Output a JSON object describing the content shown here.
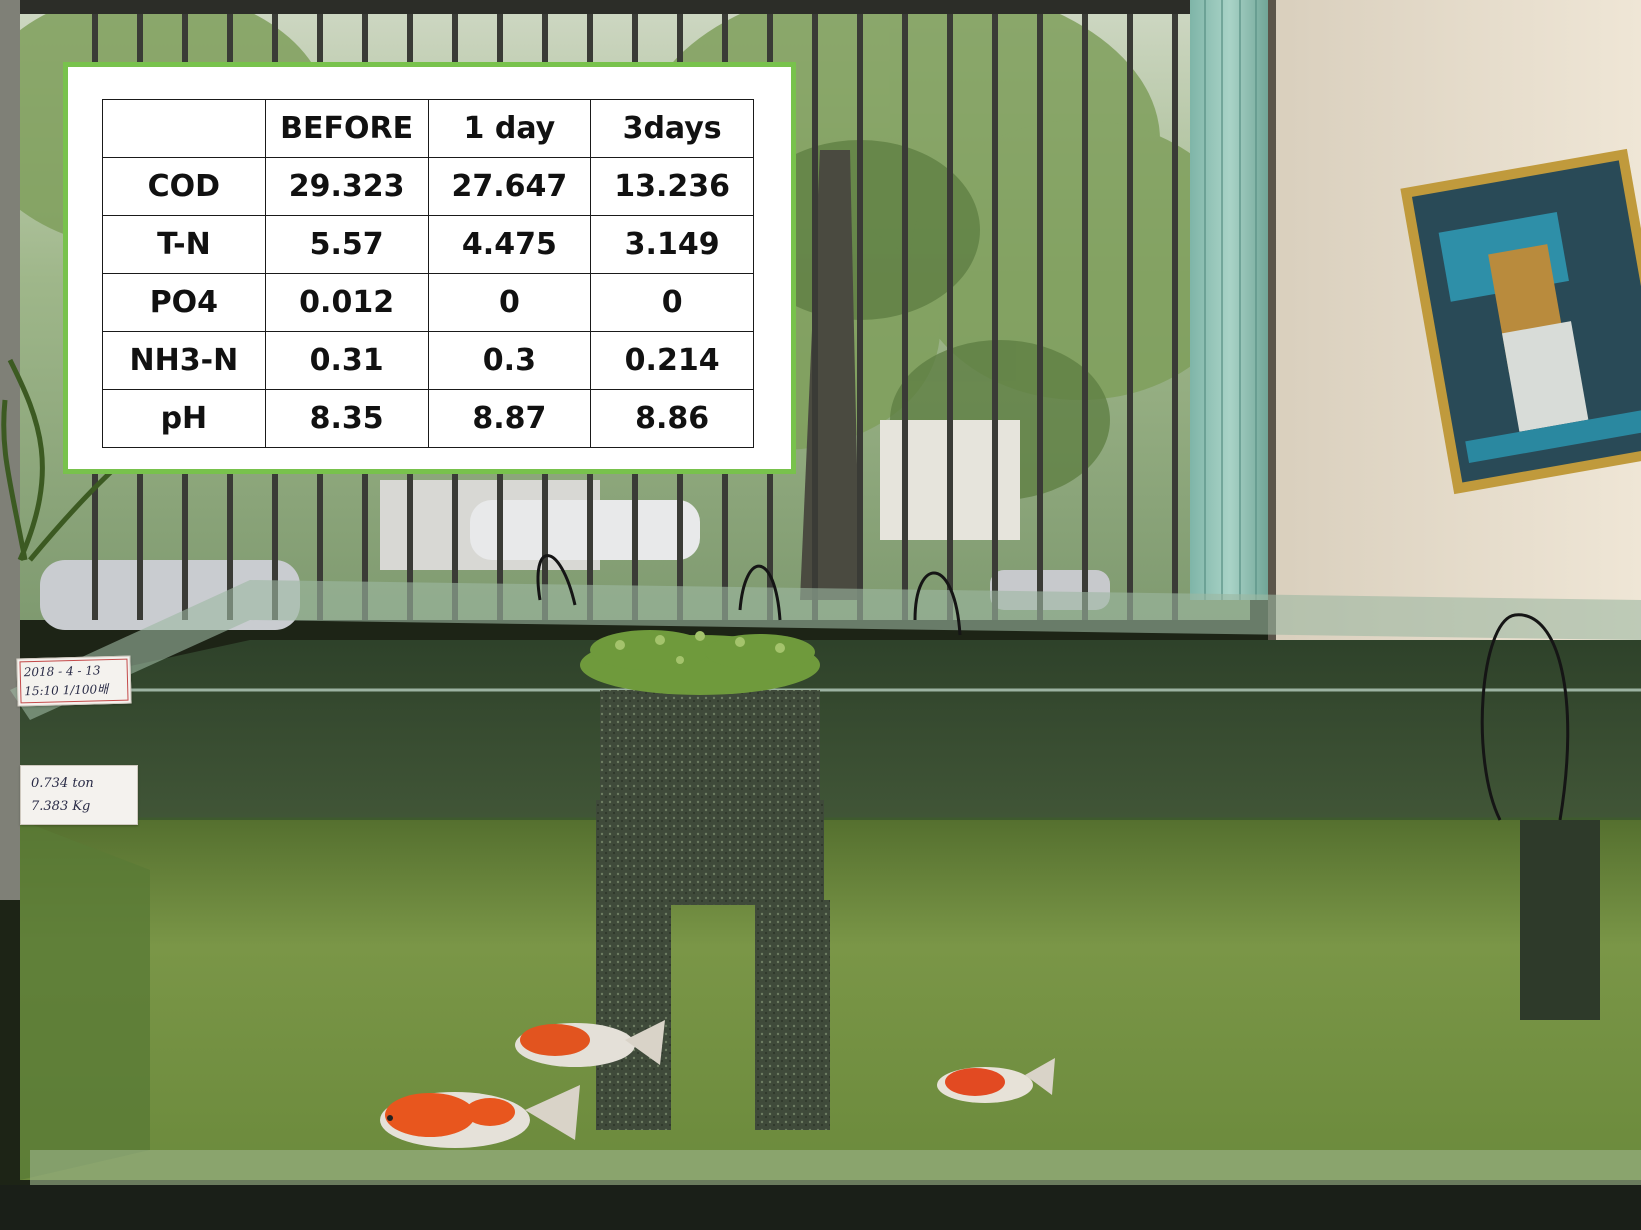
{
  "table": {
    "columns": [
      "",
      "BEFORE",
      "1 day",
      "3days"
    ],
    "rows": [
      {
        "label": "COD",
        "values": [
          "29.323",
          "27.647",
          "13.236"
        ]
      },
      {
        "label": "T-N",
        "values": [
          "5.57",
          "4.475",
          "3.149"
        ]
      },
      {
        "label": "PO4",
        "values": [
          "0.012",
          "0",
          "0"
        ]
      },
      {
        "label": "NH3-N",
        "values": [
          "0.31",
          "0.3",
          "0.214"
        ]
      },
      {
        "label": "pH",
        "values": [
          "8.35",
          "8.87",
          "8.86"
        ]
      }
    ]
  },
  "notes": {
    "date_lines": [
      "2018 - 4 - 13",
      "15:10  1/100배"
    ],
    "weight_lines": [
      "0.734 ton",
      "7.383 Kg"
    ]
  },
  "colors": {
    "table_border": "#78c24c",
    "water": "#6e8a3e",
    "wall": "#e9dfcf",
    "curtain": "#8ac1b3"
  }
}
